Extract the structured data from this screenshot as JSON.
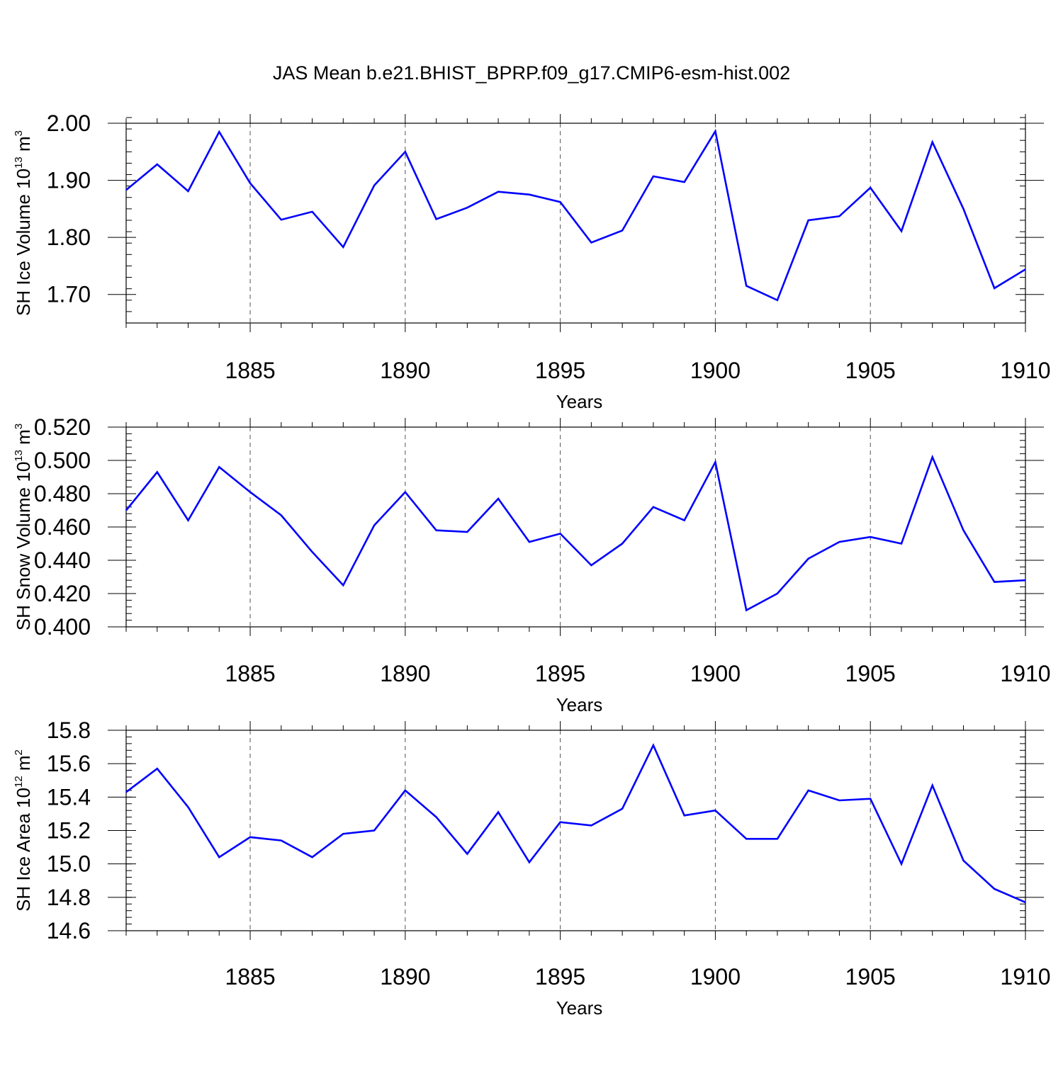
{
  "title": "JAS Mean b.e21.BHIST_BPRP.f09_g17.CMIP6-esm-hist.002",
  "colors": {
    "line": "#0000ff",
    "axes": "#000000",
    "grid": "#555555"
  },
  "chart_data": [
    {
      "type": "line",
      "series_name": "SH Ice Volume",
      "ylabel": {
        "text": "SH Ice Volume 10",
        "exp": "13",
        "unit": " m",
        "unit_exp": "3"
      },
      "xlabel": "Years",
      "xlim": [
        1881,
        1910
      ],
      "ylim": [
        1.65,
        2.0
      ],
      "yticks": [
        1.7,
        1.8,
        1.9,
        2.0
      ],
      "ytick_labels": [
        "1.70",
        "1.80",
        "1.90",
        "2.00"
      ],
      "ytick_minor_step": 0.02,
      "xticks": [
        1885,
        1890,
        1895,
        1900,
        1905,
        1910
      ],
      "xtick_labels": [
        "1885",
        "1890",
        "1895",
        "1900",
        "1905",
        "1910"
      ],
      "x": [
        1881,
        1882,
        1883,
        1884,
        1885,
        1886,
        1887,
        1888,
        1889,
        1890,
        1891,
        1892,
        1893,
        1894,
        1895,
        1896,
        1897,
        1898,
        1899,
        1900,
        1901,
        1902,
        1903,
        1904,
        1905,
        1906,
        1907,
        1908,
        1909,
        1910
      ],
      "values": [
        1.883,
        1.928,
        1.881,
        1.985,
        1.895,
        1.831,
        1.845,
        1.783,
        1.891,
        1.95,
        1.832,
        1.852,
        1.88,
        1.875,
        1.862,
        1.791,
        1.812,
        1.907,
        1.897,
        1.986,
        1.715,
        1.69,
        1.83,
        1.837,
        1.887,
        1.811,
        1.967,
        1.85,
        1.711,
        1.744
      ]
    },
    {
      "type": "line",
      "series_name": "SH Snow Volume",
      "ylabel": {
        "text": "SH Snow Volume 10",
        "exp": "13",
        "unit": " m",
        "unit_exp": "3"
      },
      "xlabel": "Years",
      "xlim": [
        1881,
        1910
      ],
      "ylim": [
        0.4,
        0.52
      ],
      "yticks": [
        0.4,
        0.42,
        0.44,
        0.46,
        0.48,
        0.5,
        0.52
      ],
      "ytick_labels": [
        "0.400",
        "0.420",
        "0.440",
        "0.460",
        "0.480",
        "0.500",
        "0.520"
      ],
      "ytick_minor_step": 0.004,
      "xticks": [
        1885,
        1890,
        1895,
        1900,
        1905,
        1910
      ],
      "xtick_labels": [
        "1885",
        "1890",
        "1895",
        "1900",
        "1905",
        "1910"
      ],
      "x": [
        1881,
        1882,
        1883,
        1884,
        1885,
        1886,
        1887,
        1888,
        1889,
        1890,
        1891,
        1892,
        1893,
        1894,
        1895,
        1896,
        1897,
        1898,
        1899,
        1900,
        1901,
        1902,
        1903,
        1904,
        1905,
        1906,
        1907,
        1908,
        1909,
        1910
      ],
      "values": [
        0.47,
        0.493,
        0.464,
        0.496,
        0.481,
        0.467,
        0.445,
        0.425,
        0.461,
        0.481,
        0.458,
        0.457,
        0.477,
        0.451,
        0.456,
        0.437,
        0.45,
        0.472,
        0.464,
        0.499,
        0.41,
        0.42,
        0.441,
        0.451,
        0.454,
        0.45,
        0.502,
        0.458,
        0.427,
        0.428
      ]
    },
    {
      "type": "line",
      "series_name": "SH Ice Area",
      "ylabel": {
        "text": "SH Ice Area 10",
        "exp": "12",
        "unit": " m",
        "unit_exp": "2"
      },
      "xlabel": "Years",
      "xlim": [
        1881,
        1910
      ],
      "ylim": [
        14.6,
        15.8
      ],
      "yticks": [
        14.6,
        14.8,
        15.0,
        15.2,
        15.4,
        15.6,
        15.8
      ],
      "ytick_labels": [
        "14.6",
        "14.8",
        "15.0",
        "15.2",
        "15.4",
        "15.6",
        "15.8"
      ],
      "ytick_minor_step": 0.04,
      "xticks": [
        1885,
        1890,
        1895,
        1900,
        1905,
        1910
      ],
      "xtick_labels": [
        "1885",
        "1890",
        "1895",
        "1900",
        "1905",
        "1910"
      ],
      "x": [
        1881,
        1882,
        1883,
        1884,
        1885,
        1886,
        1887,
        1888,
        1889,
        1890,
        1891,
        1892,
        1893,
        1894,
        1895,
        1896,
        1897,
        1898,
        1899,
        1900,
        1901,
        1902,
        1903,
        1904,
        1905,
        1906,
        1907,
        1908,
        1909,
        1910
      ],
      "values": [
        15.43,
        15.57,
        15.34,
        15.04,
        15.16,
        15.14,
        15.04,
        15.18,
        15.2,
        15.44,
        15.28,
        15.06,
        15.31,
        15.01,
        15.25,
        15.23,
        15.33,
        15.71,
        15.29,
        15.32,
        15.15,
        15.15,
        15.44,
        15.38,
        15.39,
        15.0,
        15.47,
        15.02,
        14.85,
        14.77
      ]
    }
  ]
}
